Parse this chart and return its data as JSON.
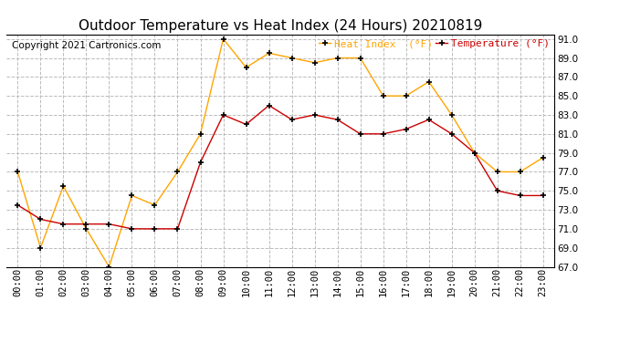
{
  "title": "Outdoor Temperature vs Heat Index (24 Hours) 20210819",
  "copyright": "Copyright 2021 Cartronics.com",
  "legend_heat": "Heat Index  (°F)",
  "legend_temp": "Temperature (°F)",
  "hours": [
    "00:00",
    "01:00",
    "02:00",
    "03:00",
    "04:00",
    "05:00",
    "06:00",
    "07:00",
    "08:00",
    "09:00",
    "10:00",
    "11:00",
    "12:00",
    "13:00",
    "14:00",
    "15:00",
    "16:00",
    "17:00",
    "18:00",
    "19:00",
    "20:00",
    "21:00",
    "22:00",
    "23:00"
  ],
  "heat_index": [
    77.0,
    69.0,
    75.5,
    71.0,
    67.0,
    74.5,
    73.5,
    77.0,
    81.0,
    91.0,
    88.0,
    89.5,
    89.0,
    88.5,
    89.0,
    89.0,
    85.0,
    85.0,
    86.5,
    83.0,
    79.0,
    77.0,
    77.0,
    78.5
  ],
  "temperature": [
    73.5,
    72.0,
    71.5,
    71.5,
    71.5,
    71.0,
    71.0,
    71.0,
    78.0,
    83.0,
    82.0,
    84.0,
    82.5,
    83.0,
    82.5,
    81.0,
    81.0,
    81.5,
    82.5,
    81.0,
    79.0,
    75.0,
    74.5,
    74.5
  ],
  "heat_color": "#FFA500",
  "temp_color": "#CC0000",
  "marker_color": "#000000",
  "ylim_min": 67.0,
  "ylim_max": 91.5,
  "ytick_min": 67.0,
  "ytick_max": 91.0,
  "ytick_step": 2.0,
  "background_color": "#FFFFFF",
  "grid_color": "#BBBBBB",
  "title_fontsize": 11,
  "axis_fontsize": 7.5,
  "legend_fontsize": 8,
  "copyright_fontsize": 7.5
}
